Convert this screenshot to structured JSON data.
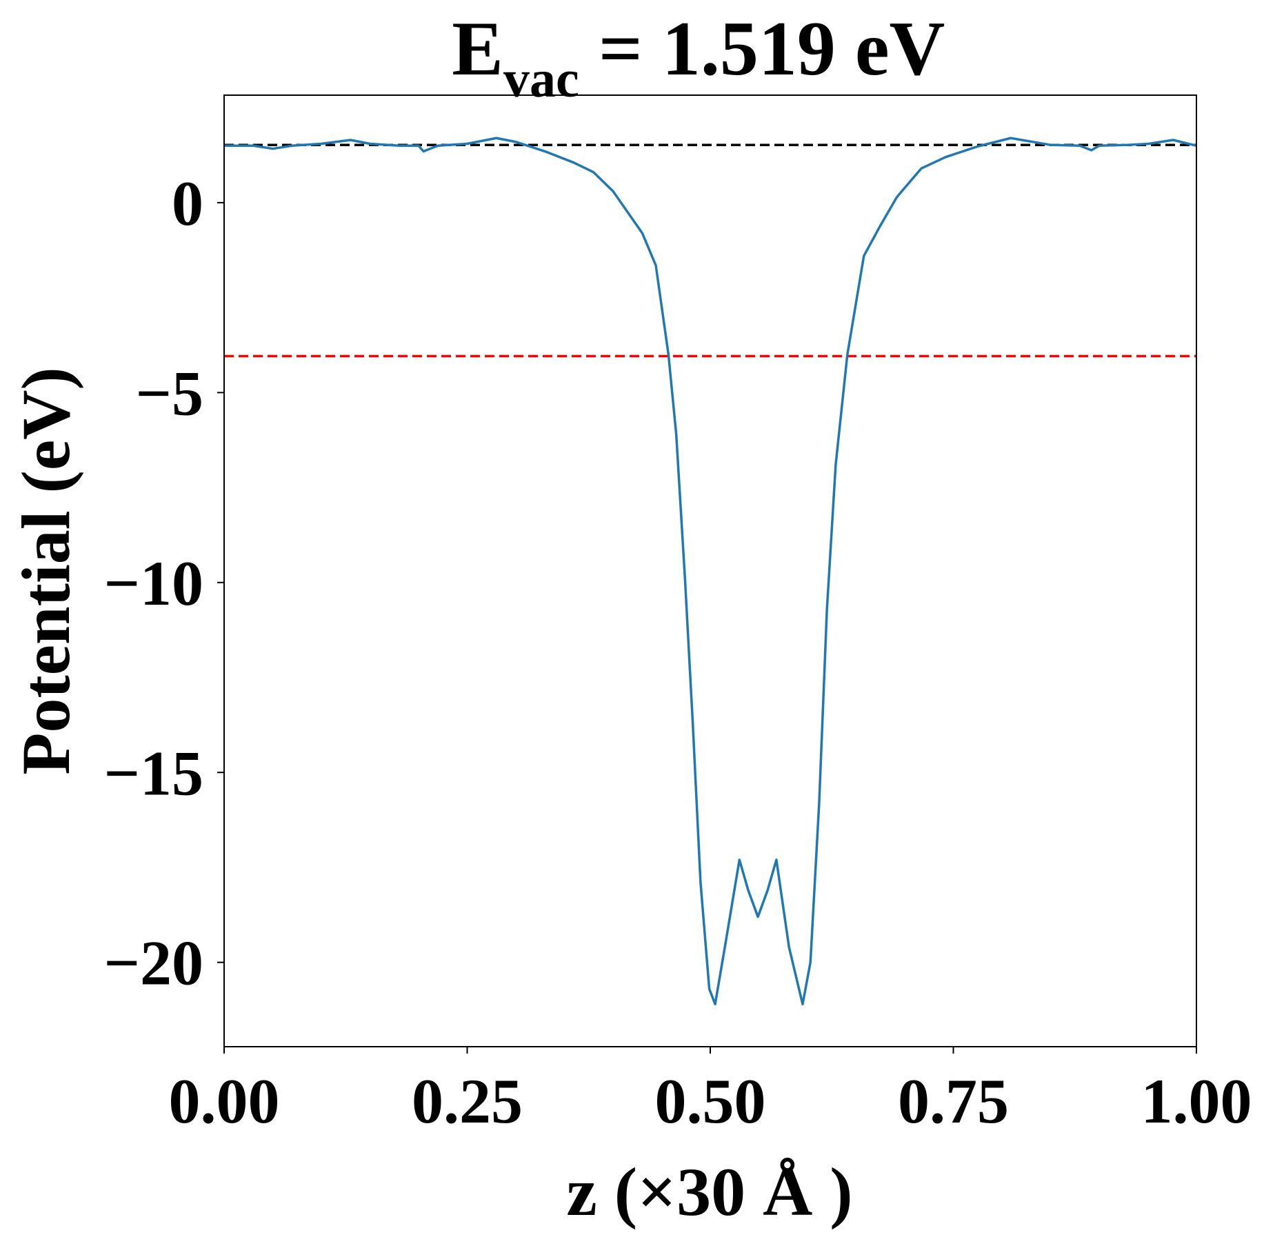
{
  "chart_data": {
    "type": "line",
    "title": {
      "main": "E",
      "subscript": "vac",
      "rest": " = 1.519 eV"
    },
    "xlabel": "z (×30 Å )",
    "ylabel": "Potential (eV)",
    "xlim": [
      0,
      1
    ],
    "ylim": [
      -22.22,
      2.83
    ],
    "xticks": [
      {
        "value": 0,
        "label": "0.00"
      },
      {
        "value": 0.25,
        "label": "0.25"
      },
      {
        "value": 0.5,
        "label": "0.50"
      },
      {
        "value": 0.75,
        "label": "0.75"
      },
      {
        "value": 1,
        "label": "1.00"
      }
    ],
    "yticks": [
      0,
      {
        "value": -5,
        "label": "−5"
      },
      {
        "value": -10,
        "label": "−10"
      },
      {
        "value": -15,
        "label": "−15"
      },
      {
        "value": -20,
        "label": "−20"
      }
    ],
    "x": [
      0,
      0.03,
      0.05,
      0.07,
      0.1,
      0.13,
      0.15,
      0.18,
      0.2,
      0.205,
      0.22,
      0.25,
      0.28,
      0.3,
      0.33,
      0.36,
      0.38,
      0.4,
      0.43,
      0.444,
      0.457,
      0.465,
      0.474,
      0.482,
      0.49,
      0.499,
      0.505,
      0.515,
      0.53,
      0.539,
      0.549,
      0.559,
      0.568,
      0.581,
      0.595,
      0.603,
      0.612,
      0.62,
      0.629,
      0.641,
      0.658,
      0.675,
      0.692,
      0.717,
      0.742,
      0.775,
      0.809,
      0.85,
      0.88,
      0.892,
      0.9,
      0.93,
      0.951,
      0.976,
      1.0
    ],
    "series": [
      {
        "name": "potential",
        "color": "#1f77b4",
        "values": [
          1.5,
          1.5,
          1.42,
          1.5,
          1.55,
          1.65,
          1.55,
          1.5,
          1.5,
          1.35,
          1.5,
          1.55,
          1.7,
          1.6,
          1.35,
          1.05,
          0.8,
          0.3,
          -0.8,
          -1.65,
          -4.0,
          -6.1,
          -9.9,
          -13.7,
          -17.9,
          -20.7,
          -21.1,
          -19.6,
          -17.3,
          -18.1,
          -18.8,
          -18.1,
          -17.3,
          -19.6,
          -21.1,
          -20.0,
          -15.8,
          -10.7,
          -6.9,
          -4.0,
          -1.4,
          -0.6,
          0.15,
          0.9,
          1.2,
          1.48,
          1.7,
          1.52,
          1.5,
          1.38,
          1.5,
          1.52,
          1.55,
          1.65,
          1.5
        ]
      }
    ],
    "reference_lines": [
      {
        "value": 1.519,
        "color": "#000000"
      },
      {
        "value": -4.04,
        "color": "#ff0000"
      }
    ]
  }
}
